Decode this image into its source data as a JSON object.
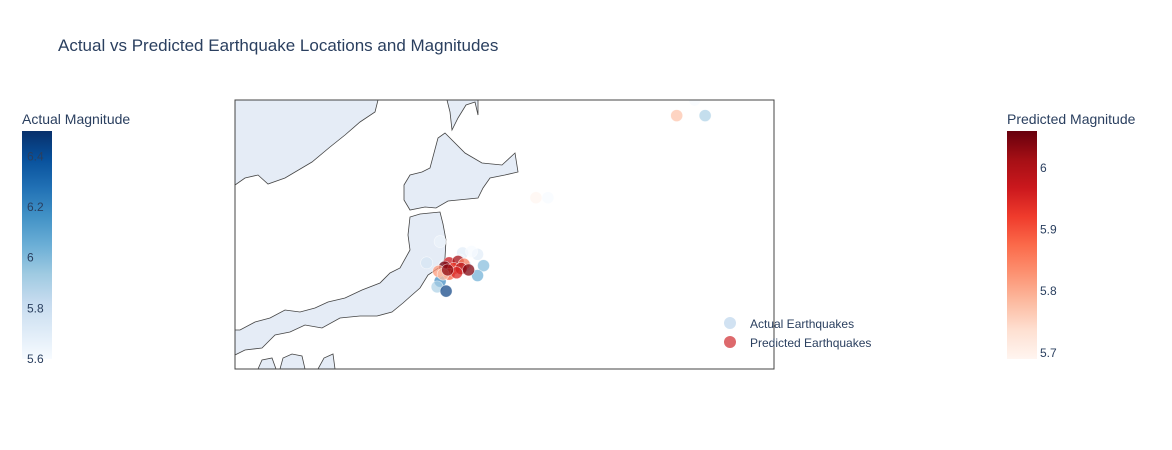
{
  "chart_data": {
    "type": "scatter",
    "title": "Actual vs Predicted Earthquake Locations and Magnitudes",
    "map": {
      "kind": "geo",
      "region": "Japan",
      "lon_range": [
        128,
        164
      ],
      "lat_range": [
        31,
        50
      ]
    },
    "colorbars": [
      {
        "title": "Actual Magnitude",
        "colorscale": "Blues",
        "range": [
          5.6,
          6.5
        ],
        "ticks": [
          "5.6",
          "5.8",
          "6",
          "6.2",
          "6.4"
        ]
      },
      {
        "title": "Predicted Magnitude",
        "colorscale": "Reds",
        "range": [
          5.69,
          6.06
        ],
        "ticks": [
          "5.7",
          "5.8",
          "5.9",
          "6"
        ]
      }
    ],
    "legend": {
      "placement": "bottom-right",
      "entries": [
        "Actual Earthquakes",
        "Predicted Earthquakes"
      ]
    },
    "series": [
      {
        "name": "Actual Earthquakes",
        "colorscale": "Blues",
        "points": [
          {
            "lon": 158.7,
            "lat": 50.0,
            "mag": 5.6
          },
          {
            "lon": 159.4,
            "lat": 48.9,
            "mag": 5.9
          },
          {
            "lon": 148.9,
            "lat": 43.1,
            "mag": 5.6
          },
          {
            "lon": 141.7,
            "lat": 40.0,
            "mag": 5.65
          },
          {
            "lon": 143.2,
            "lat": 39.2,
            "mag": 5.7
          },
          {
            "lon": 144.2,
            "lat": 39.1,
            "mag": 5.7
          },
          {
            "lon": 142.0,
            "lat": 38.3,
            "mag": 5.7
          },
          {
            "lon": 143.4,
            "lat": 38.3,
            "mag": 5.8
          },
          {
            "lon": 144.6,
            "lat": 38.3,
            "mag": 6.0
          },
          {
            "lon": 144.2,
            "lat": 37.6,
            "mag": 6.05
          },
          {
            "lon": 141.7,
            "lat": 37.2,
            "mag": 6.2
          },
          {
            "lon": 141.5,
            "lat": 36.8,
            "mag": 5.9
          },
          {
            "lon": 142.1,
            "lat": 36.5,
            "mag": 6.45
          },
          {
            "lon": 140.8,
            "lat": 38.5,
            "mag": 5.75
          },
          {
            "lon": 143.0,
            "lat": 38.7,
            "mag": 5.65
          },
          {
            "lon": 143.8,
            "lat": 39.3,
            "mag": 5.6
          }
        ]
      },
      {
        "name": "Predicted Earthquakes",
        "colorscale": "Reds",
        "points": [
          {
            "lon": 157.5,
            "lat": 48.9,
            "mag": 5.77
          },
          {
            "lon": 148.1,
            "lat": 43.1,
            "mag": 5.69
          },
          {
            "lon": 142.3,
            "lat": 38.5,
            "mag": 5.97
          },
          {
            "lon": 142.9,
            "lat": 38.6,
            "mag": 6.01
          },
          {
            "lon": 143.3,
            "lat": 38.4,
            "mag": 5.85
          },
          {
            "lon": 142.0,
            "lat": 38.2,
            "mag": 6.05
          },
          {
            "lon": 142.6,
            "lat": 38.1,
            "mag": 5.92
          },
          {
            "lon": 143.1,
            "lat": 38.1,
            "mag": 5.99
          },
          {
            "lon": 143.6,
            "lat": 38.0,
            "mag": 6.04
          },
          {
            "lon": 141.6,
            "lat": 37.9,
            "mag": 5.82
          },
          {
            "lon": 142.3,
            "lat": 37.7,
            "mag": 5.88
          },
          {
            "lon": 142.8,
            "lat": 37.8,
            "mag": 5.95
          },
          {
            "lon": 141.9,
            "lat": 37.7,
            "mag": 5.78
          },
          {
            "lon": 142.2,
            "lat": 38.0,
            "mag": 6.03
          }
        ]
      }
    ]
  },
  "colors": {
    "land": "#E5ECF6",
    "coastline": "#444444",
    "text": "#2a3f5f",
    "blues_scale": [
      "#f7fbff",
      "#deebf7",
      "#c6dbef",
      "#9ecae1",
      "#6baed6",
      "#4292c6",
      "#2171b5",
      "#08519c",
      "#08306b"
    ],
    "reds_scale": [
      "#fff5f0",
      "#fee0d2",
      "#fcbba1",
      "#fc9272",
      "#fb6a4a",
      "#ef3b2c",
      "#cb181d",
      "#a50f15",
      "#67000d"
    ]
  }
}
